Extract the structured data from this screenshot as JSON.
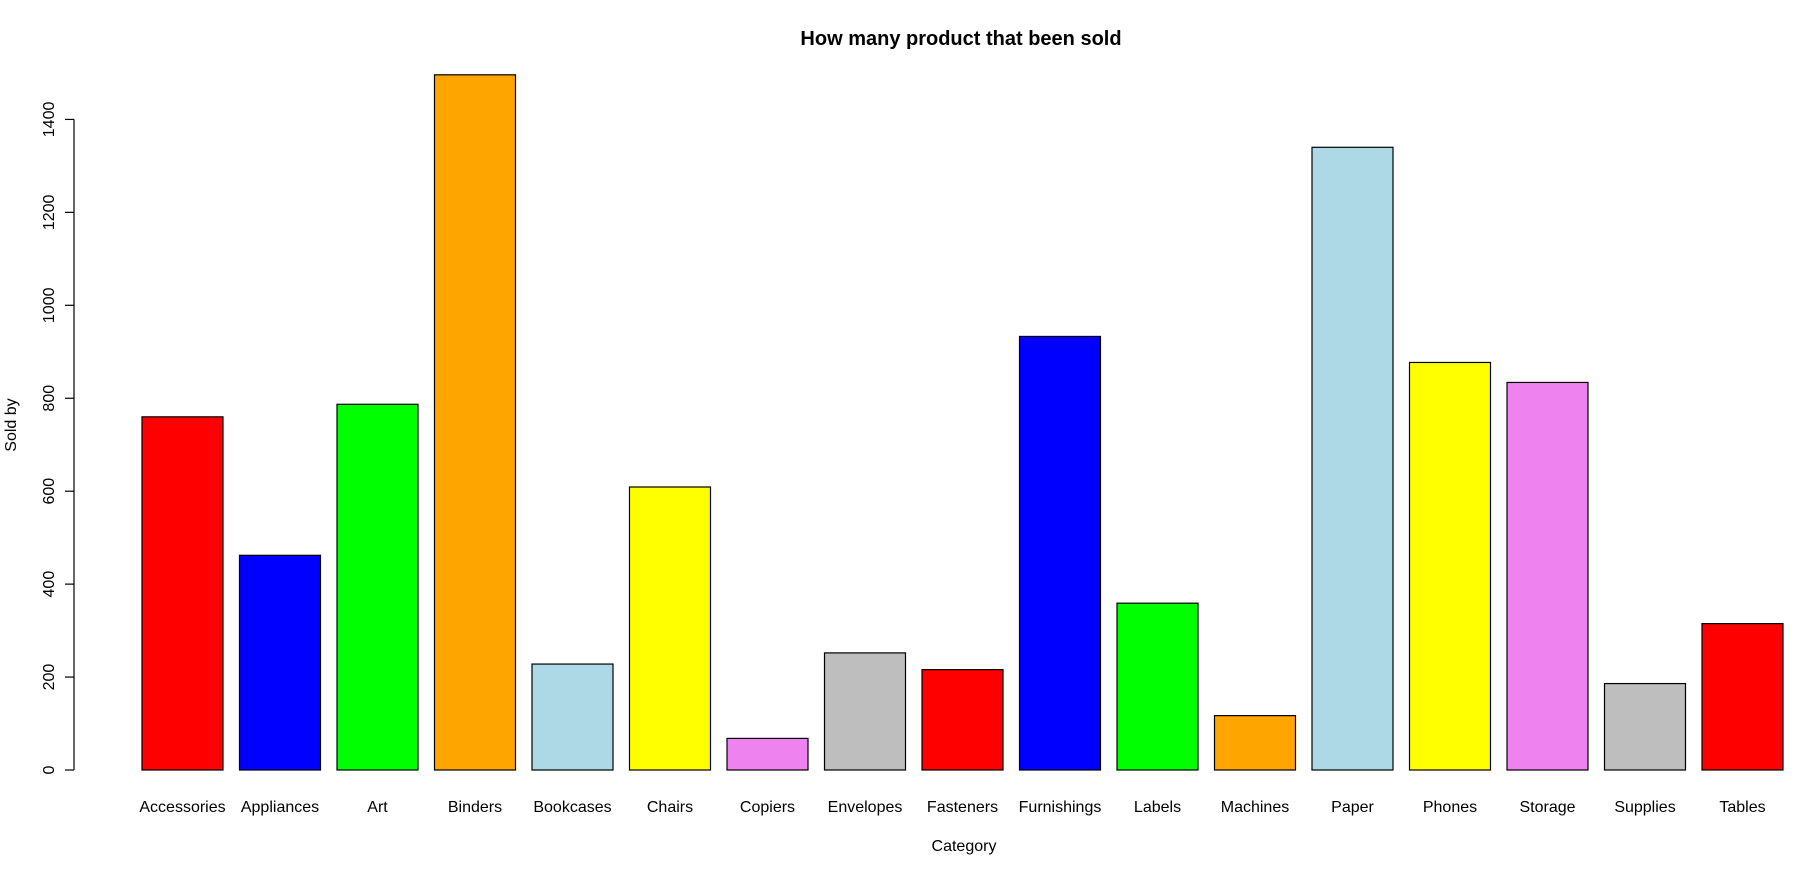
{
  "chart_data": {
    "type": "bar",
    "title": "How many product that been sold",
    "xlabel": "Category",
    "ylabel": "Sold by",
    "ylim": [
      0,
      1500
    ],
    "yticks": [
      "0",
      "200",
      "400",
      "600",
      "800",
      "1000",
      "1200",
      "1400"
    ],
    "grid": false,
    "categories": [
      "Accessories",
      "Appliances",
      "Art",
      "Binders",
      "Bookcases",
      "Chairs",
      "Copiers",
      "Envelopes",
      "Fasteners",
      "Furnishings",
      "Labels",
      "Machines",
      "Paper",
      "Phones",
      "Storage",
      "Supplies",
      "Tables"
    ],
    "values": [
      760,
      462,
      787,
      1496,
      228,
      609,
      68,
      252,
      216,
      933,
      359,
      117,
      1340,
      877,
      834,
      186,
      315
    ],
    "colors": [
      "#ff0000",
      "#0000ff",
      "#00ff00",
      "#ffa500",
      "#add8e6",
      "#ffff00",
      "#ee82ee",
      "#bebebe",
      "#ff0000",
      "#0000ff",
      "#00ff00",
      "#ffa500",
      "#add8e6",
      "#ffff00",
      "#ee82ee",
      "#bebebe",
      "#ff0000"
    ]
  }
}
